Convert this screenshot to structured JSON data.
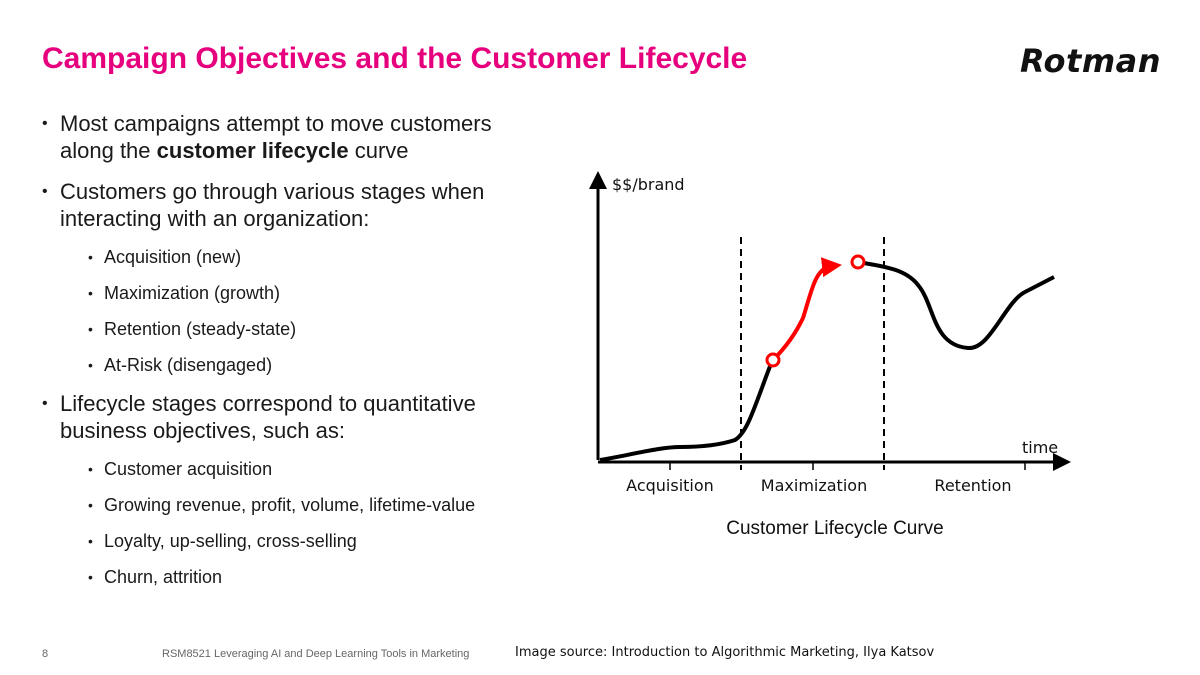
{
  "slide": {
    "title": "Campaign Objectives and the Customer Lifecycle",
    "logo": "Rotman"
  },
  "bullets": {
    "b1_pre": "Most campaigns attempt to move customers along the ",
    "b1_bold": "customer lifecycle",
    "b1_post": " curve",
    "b2": "Customers go through various stages when interacting with an organization:",
    "stages": [
      "Acquisition (new)",
      "Maximization (growth)",
      "Retention (steady-state)",
      "At-Risk (disengaged)"
    ],
    "b3": "Lifecycle stages correspond to quantitative business objectives, such as:",
    "objectives": [
      "Customer acquisition",
      "Growing revenue, profit, volume, lifetime-value",
      "Loyalty, up-selling, cross-selling",
      "Churn, attrition"
    ]
  },
  "diagram": {
    "y_label": "$$/brand",
    "x_label": "time",
    "segments": [
      "Acquisition",
      "Maximization",
      "Retention"
    ],
    "caption": "Customer Lifecycle Curve",
    "colors": {
      "curve": "#000000",
      "highlight": "#ff0000"
    }
  },
  "footer": {
    "page_number": "8",
    "course": "RSM8521 Leveraging AI and Deep Learning Tools in Marketing",
    "source": "Image source: Introduction to Algorithmic Marketing, Ilya Katsov"
  }
}
